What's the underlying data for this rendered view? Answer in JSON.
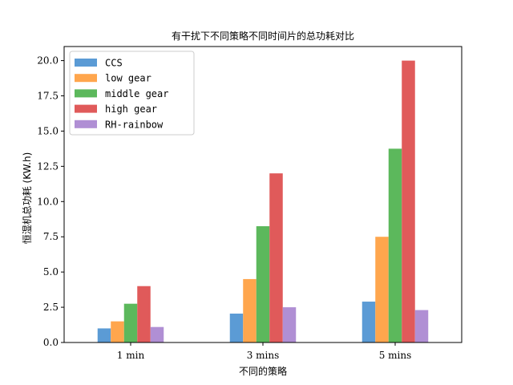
{
  "chart_data": {
    "type": "bar",
    "title": "有干扰下不同策略不同时间片的总功耗对比",
    "xlabel": "不同的策略",
    "ylabel": "恒湿机总功耗 (KW.h)",
    "categories": [
      "1 min",
      "3 mins",
      "5 mins"
    ],
    "ylim": [
      0,
      21.0
    ],
    "yticks": [
      "0.0",
      "2.5",
      "5.0",
      "7.5",
      "10.0",
      "12.5",
      "15.0",
      "17.5",
      "20.0"
    ],
    "legend_position": "upper-left",
    "series": [
      {
        "name": "CCS",
        "color": "#5b9bd5",
        "values": [
          1.0,
          2.05,
          2.9
        ]
      },
      {
        "name": "low gear",
        "color": "#ffa64d",
        "values": [
          1.5,
          4.5,
          7.5
        ]
      },
      {
        "name": "middle gear",
        "color": "#5cb85c",
        "values": [
          2.75,
          8.25,
          13.75
        ]
      },
      {
        "name": "high gear",
        "color": "#e05a5a",
        "values": [
          4.0,
          12.0,
          20.0
        ]
      },
      {
        "name": "RH-rainbow",
        "color": "#b08fd4",
        "values": [
          1.1,
          2.5,
          2.3
        ]
      }
    ]
  }
}
